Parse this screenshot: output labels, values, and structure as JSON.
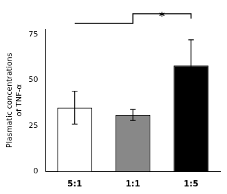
{
  "chart_data": {
    "type": "bar",
    "categories": [
      "5:1",
      "1:1",
      "1:5"
    ],
    "values": [
      35.0,
      31.0,
      58.0
    ],
    "errors": [
      9.0,
      3.0,
      14.0
    ],
    "colors": [
      "#ffffff",
      "#888888",
      "#000000"
    ],
    "ylabel": "Plasmatic concentrations\nof TNF-α",
    "ylim": [
      0,
      78
    ],
    "yticks": [
      0,
      25,
      50,
      75
    ],
    "grid": false,
    "annotations": [
      "*"
    ]
  }
}
